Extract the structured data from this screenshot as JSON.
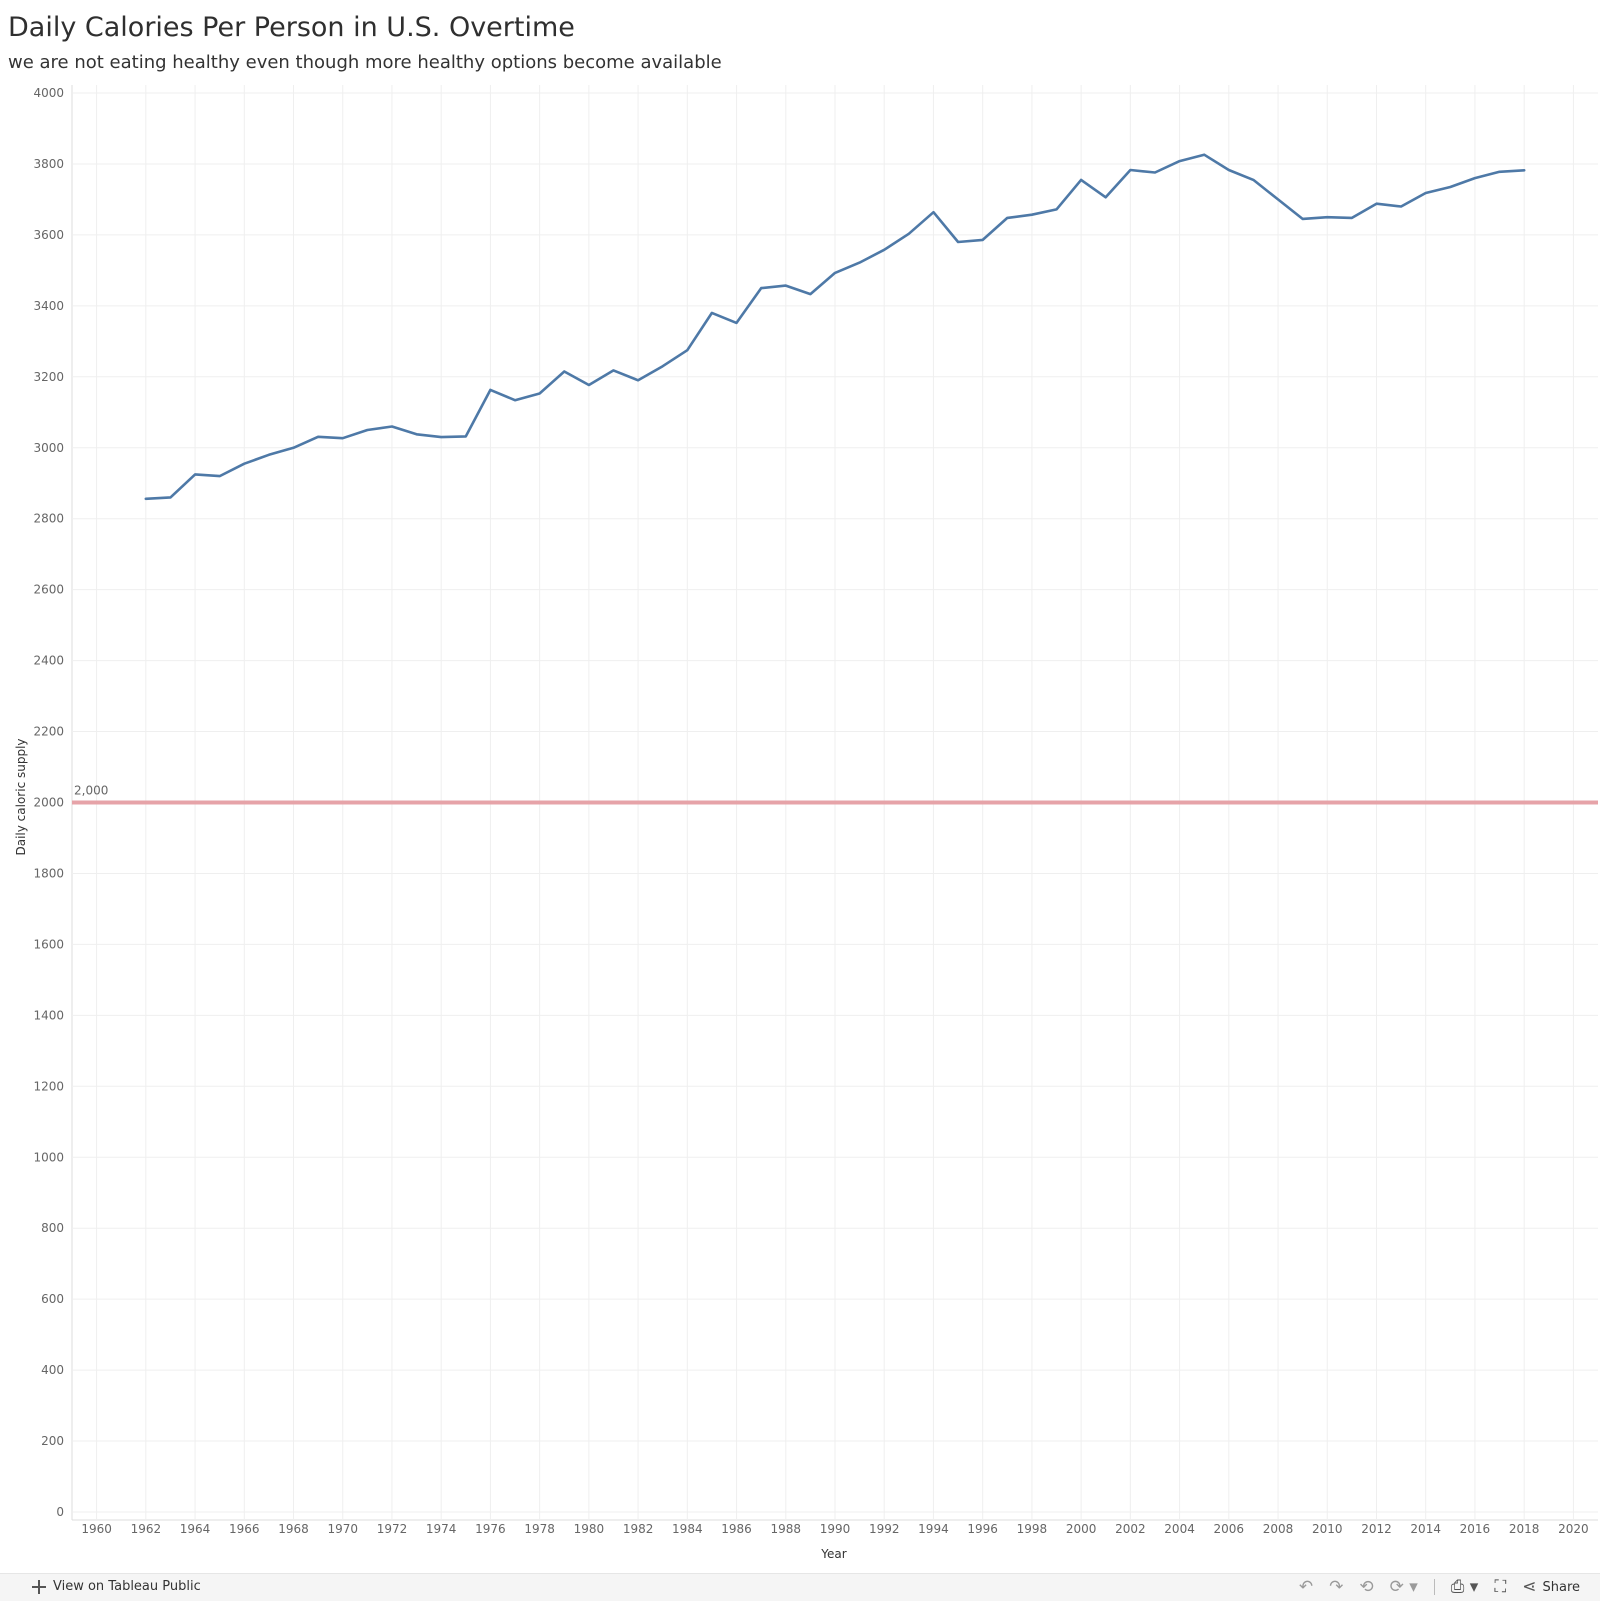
{
  "header": {
    "title": "Daily Calories Per Person in U.S. Overtime",
    "subtitle": "we are not eating healthy even though more healthy options become available"
  },
  "chart_data": {
    "type": "line",
    "title": "Daily Calories Per Person in U.S. Overtime",
    "subtitle": "we are not eating healthy even though more healthy options become available",
    "xlabel": "Year",
    "ylabel": "Daily caloric supply",
    "xlim": [
      1959,
      2021
    ],
    "ylim": [
      0,
      4000
    ],
    "x_ticks": [
      "1960",
      "1962",
      "1964",
      "1966",
      "1968",
      "1970",
      "1972",
      "1974",
      "1976",
      "1978",
      "1980",
      "1982",
      "1984",
      "1986",
      "1988",
      "1990",
      "1992",
      "1994",
      "1996",
      "1998",
      "2000",
      "2002",
      "2004",
      "2006",
      "2008",
      "2010",
      "2012",
      "2014",
      "2016",
      "2018",
      "2020"
    ],
    "y_ticks": [
      "0",
      "200",
      "400",
      "600",
      "800",
      "1000",
      "1200",
      "1400",
      "1600",
      "1800",
      "2000",
      "2200",
      "2400",
      "2600",
      "2800",
      "3000",
      "3200",
      "3400",
      "3600",
      "3800",
      "4000"
    ],
    "grid": true,
    "line_color": "#4e79a7",
    "x": [
      1962,
      1963,
      1964,
      1965,
      1966,
      1967,
      1968,
      1969,
      1970,
      1971,
      1972,
      1973,
      1974,
      1975,
      1976,
      1977,
      1978,
      1979,
      1980,
      1981,
      1982,
      1983,
      1984,
      1985,
      1986,
      1987,
      1988,
      1989,
      1990,
      1991,
      1992,
      1993,
      1994,
      1995,
      1996,
      1997,
      1998,
      1999,
      2000,
      2001,
      2002,
      2003,
      2004,
      2005,
      2006,
      2007,
      2008,
      2009,
      2010,
      2011,
      2012,
      2013,
      2014,
      2015,
      2016,
      2017,
      2018
    ],
    "values": [
      2856,
      2860,
      2925,
      2920,
      2955,
      2980,
      3000,
      3031,
      3027,
      3050,
      3060,
      3038,
      3030,
      3032,
      3163,
      3134,
      3153,
      3215,
      3177,
      3218,
      3190,
      3230,
      3275,
      3380,
      3352,
      3450,
      3457,
      3433,
      3493,
      3522,
      3558,
      3603,
      3664,
      3580,
      3586,
      3648,
      3657,
      3672,
      3755,
      3706,
      3783,
      3776,
      3808,
      3826,
      3783,
      3755,
      3700,
      3645,
      3650,
      3648,
      3688,
      3680,
      3718,
      3735,
      3760,
      3778,
      3782
    ],
    "reference_line": {
      "value": 2000,
      "label": "2,000",
      "color": "#e6a3a8"
    }
  },
  "footer": {
    "view_label": "View on Tableau Public",
    "share_label": "Share",
    "icons": [
      "undo-icon",
      "redo-icon",
      "revert-icon",
      "refresh-icon",
      "download-icon",
      "fullscreen-icon",
      "share-icon"
    ]
  }
}
